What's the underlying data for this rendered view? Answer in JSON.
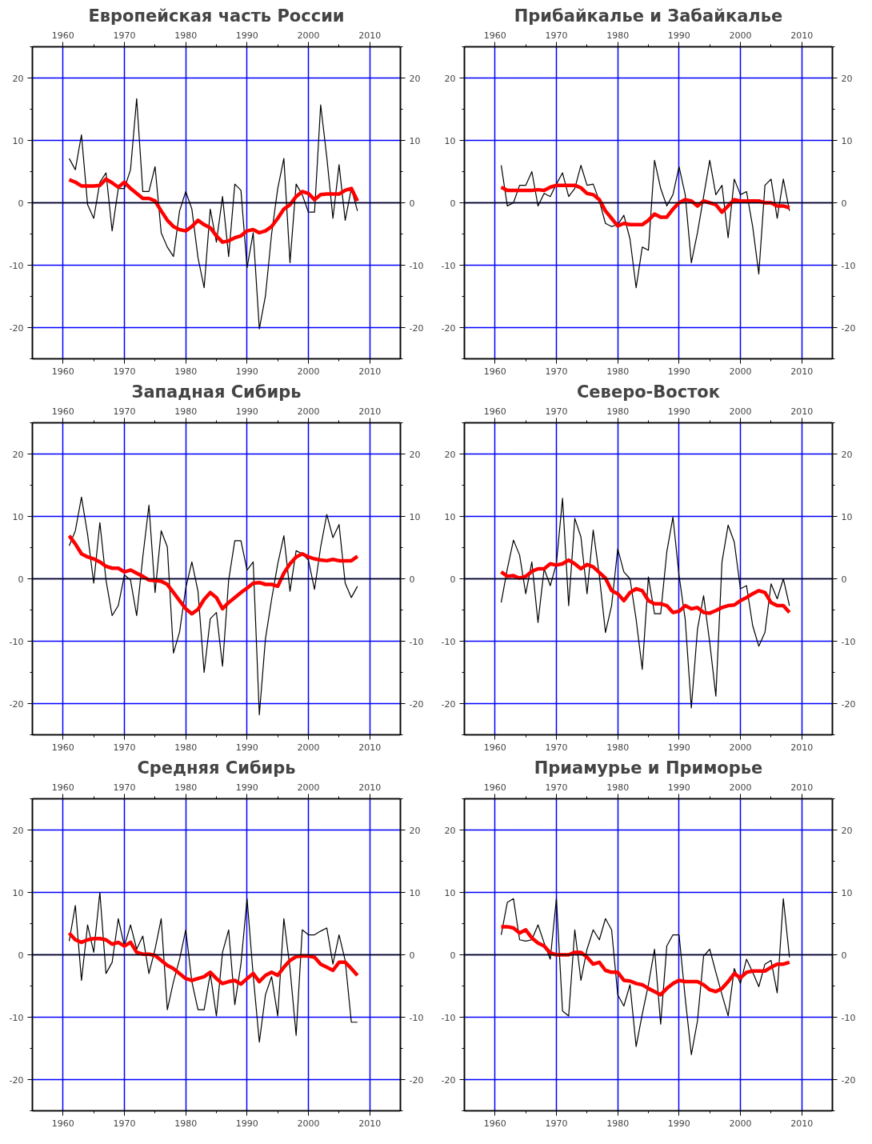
{
  "chart_data": [
    {
      "type": "line",
      "title": "Европейская часть России",
      "x": [
        1961,
        1962,
        1963,
        1964,
        1965,
        1966,
        1967,
        1968,
        1969,
        1970,
        1971,
        1972,
        1973,
        1974,
        1975,
        1976,
        1977,
        1978,
        1979,
        1980,
        1981,
        1982,
        1983,
        1984,
        1985,
        1986,
        1987,
        1988,
        1989,
        1990,
        1991,
        1992,
        1993,
        1994,
        1995,
        1996,
        1997,
        1998,
        1999,
        2000,
        2001,
        2002,
        2003,
        2004,
        2005,
        2006,
        2007,
        2008
      ],
      "series": [
        {
          "color": "#000000",
          "values": [
            7.1,
            5.3,
            10.9,
            -0.3,
            -2.5,
            3.3,
            4.8,
            -4.5,
            2.3,
            2.3,
            5.3,
            16.7,
            1.8,
            1.8,
            5.8,
            -4.8,
            -7.1,
            -8.6,
            -1.3,
            1.8,
            -1,
            -8.8,
            -13.6,
            -1,
            -6.3,
            1,
            -8.6,
            3,
            2,
            -10.4,
            -4.8,
            -20.2,
            -14.9,
            -5,
            2.3,
            7.1,
            -9.6,
            3,
            1.3,
            -1.5,
            -1.5,
            15.7,
            7.3,
            -2.5,
            6.1,
            -2.8,
            2.3,
            -1.3
          ]
        },
        {
          "color": "#ff0000",
          "values": [
            3.7,
            3.3,
            2.7,
            2.7,
            2.7,
            2.8,
            3.8,
            3.2,
            2.5,
            3.3,
            2.3,
            1.5,
            0.7,
            0.7,
            0.3,
            -1.3,
            -2.8,
            -3.8,
            -4.3,
            -4.5,
            -3.8,
            -2.8,
            -3.5,
            -4,
            -5.3,
            -6.3,
            -6.1,
            -5.6,
            -5.3,
            -4.5,
            -4.3,
            -4.8,
            -4.5,
            -3.8,
            -2.5,
            -1,
            -0.3,
            1,
            1.8,
            1.5,
            0.5,
            1.3,
            1.4,
            1.4,
            1.4,
            2,
            2.3,
            0.3
          ]
        }
      ],
      "xlim": [
        1955,
        2015
      ],
      "ylim": [
        -25,
        25
      ],
      "x2lim": [
        1955,
        2015
      ],
      "y2lim": [
        -25,
        25
      ],
      "xticks": [
        1960,
        {
          "value": 1965,
          "label": null
        },
        1970,
        {
          "value": 1975,
          "label": null
        },
        1980,
        {
          "value": 1985,
          "label": null
        },
        1990,
        {
          "value": 1995,
          "label": null
        },
        2000,
        {
          "value": 2005,
          "label": null
        },
        2010
      ],
      "x2ticks": [
        1960,
        {
          "value": 1965,
          "label": null
        },
        1970,
        {
          "value": 1975,
          "label": null
        },
        1980,
        {
          "value": 1985,
          "label": null
        },
        1990,
        {
          "value": 1995,
          "label": null
        },
        2000,
        {
          "value": 2005,
          "label": null
        },
        2010
      ],
      "yticks": [
        {
          "value": -25,
          "label": null
        },
        -20,
        {
          "value": -15,
          "label": null
        },
        -10,
        {
          "value": -5,
          "label": null
        },
        0,
        {
          "value": 5,
          "label": null
        },
        10,
        {
          "value": 15,
          "label": null
        },
        20,
        {
          "value": 25,
          "label": null
        }
      ],
      "y2ticks": [
        {
          "value": -25,
          "label": null
        },
        -20,
        {
          "value": -15,
          "label": null
        },
        -10,
        {
          "value": -5,
          "label": null
        },
        0,
        {
          "value": 5,
          "label": null
        },
        10,
        {
          "value": 15,
          "label": null
        },
        20,
        {
          "value": 25,
          "label": null
        }
      ],
      "grid": true,
      "ref_lines": [
        {
          "axis": "y",
          "value": 0,
          "color": "#000000"
        }
      ]
    },
    {
      "type": "line",
      "title": "Прибайкалье и Забайкалье",
      "x": [
        1961,
        1962,
        1963,
        1964,
        1965,
        1966,
        1967,
        1968,
        1969,
        1970,
        1971,
        1972,
        1973,
        1974,
        1975,
        1976,
        1977,
        1978,
        1979,
        1980,
        1981,
        1982,
        1983,
        1984,
        1985,
        1986,
        1987,
        1988,
        1989,
        1990,
        1991,
        1992,
        1993,
        1994,
        1995,
        1996,
        1997,
        1998,
        1999,
        2000,
        2001,
        2002,
        2003,
        2004,
        2005,
        2006,
        2007,
        2008
      ],
      "series": [
        {
          "color": "#000000",
          "values": [
            6,
            -0.5,
            0,
            2.8,
            2.8,
            5,
            -0.5,
            1.5,
            1,
            3,
            4.8,
            1,
            2.3,
            6,
            2.8,
            3,
            0.3,
            -3.3,
            -3.8,
            -3.5,
            -2,
            -5.8,
            -13.6,
            -7.1,
            -7.6,
            6.8,
            2.3,
            -0.5,
            1.3,
            5.8,
            1.3,
            -9.6,
            -4.8,
            1,
            6.8,
            1.3,
            2.8,
            -5.6,
            3.8,
            1.3,
            1.8,
            -3.8,
            -11.4,
            2.8,
            3.8,
            -2.5,
            3.8,
            -1.3
          ]
        },
        {
          "color": "#ff0000",
          "values": [
            2.5,
            2,
            2,
            2,
            2,
            2,
            2.1,
            2,
            2.5,
            2.8,
            2.8,
            2.8,
            2.8,
            2.4,
            1.5,
            1.3,
            0.5,
            -1.3,
            -2.5,
            -3.7,
            -3.3,
            -3.5,
            -3.5,
            -3.5,
            -2.8,
            -1.8,
            -2.3,
            -2.3,
            -1,
            0,
            0.5,
            0.3,
            -0.5,
            0.3,
            0,
            -0.3,
            -1.5,
            -0.5,
            0.5,
            0.3,
            0.3,
            0.3,
            0.3,
            0,
            0,
            -0.5,
            -0.5,
            -0.8
          ]
        }
      ],
      "xlim": [
        1955,
        2015
      ],
      "ylim": [
        -25,
        25
      ],
      "x2lim": [
        1955,
        2015
      ],
      "y2lim": [
        -25,
        25
      ],
      "xticks": [
        1960,
        {
          "value": 1965,
          "label": null
        },
        1970,
        {
          "value": 1975,
          "label": null
        },
        1980,
        {
          "value": 1985,
          "label": null
        },
        1990,
        {
          "value": 1995,
          "label": null
        },
        2000,
        {
          "value": 2005,
          "label": null
        },
        2010
      ],
      "x2ticks": [
        1960,
        {
          "value": 1965,
          "label": null
        },
        1970,
        {
          "value": 1975,
          "label": null
        },
        1980,
        {
          "value": 1985,
          "label": null
        },
        1990,
        {
          "value": 1995,
          "label": null
        },
        2000,
        {
          "value": 2005,
          "label": null
        },
        2010
      ],
      "yticks": [
        {
          "value": -25,
          "label": null
        },
        -20,
        {
          "value": -15,
          "label": null
        },
        -10,
        {
          "value": -5,
          "label": null
        },
        0,
        {
          "value": 5,
          "label": null
        },
        10,
        {
          "value": 15,
          "label": null
        },
        20,
        {
          "value": 25,
          "label": null
        }
      ],
      "y2ticks": [
        {
          "value": -25,
          "label": null
        },
        -20,
        {
          "value": -15,
          "label": null
        },
        -10,
        {
          "value": -5,
          "label": null
        },
        0,
        {
          "value": 5,
          "label": null
        },
        10,
        {
          "value": 15,
          "label": null
        },
        20,
        {
          "value": 25,
          "label": null
        }
      ],
      "grid": true,
      "ref_lines": [
        {
          "axis": "y",
          "value": 0,
          "color": "#000000"
        }
      ]
    },
    {
      "type": "line",
      "title": "Западная Сибирь",
      "x": [
        1961,
        1962,
        1963,
        1964,
        1965,
        1966,
        1967,
        1968,
        1969,
        1970,
        1971,
        1972,
        1973,
        1974,
        1975,
        1976,
        1977,
        1978,
        1979,
        1980,
        1981,
        1982,
        1983,
        1984,
        1985,
        1986,
        1987,
        1988,
        1989,
        1990,
        1991,
        1992,
        1993,
        1994,
        1995,
        1996,
        1997,
        1998,
        1999,
        2000,
        2001,
        2002,
        2003,
        2004,
        2005,
        2006,
        2007,
        2008
      ],
      "series": [
        {
          "color": "#000000",
          "values": [
            5.3,
            7.7,
            13.1,
            7.1,
            -0.7,
            9,
            -0.2,
            -5.9,
            -4.3,
            0.6,
            -0.2,
            -5.9,
            3.5,
            11.8,
            -2.2,
            7.7,
            5.1,
            -11.9,
            -8.5,
            -1.5,
            2.7,
            -2,
            -15,
            -6.4,
            -5.4,
            -14,
            -0.2,
            6.1,
            6.1,
            1.4,
            2.7,
            -21.8,
            -9.6,
            -3.3,
            2.4,
            6.9,
            -2,
            4.5,
            4,
            3,
            -1.7,
            5.1,
            10.3,
            6.6,
            8.7,
            -0.7,
            -3,
            -1.2
          ]
        },
        {
          "color": "#ff0000",
          "values": [
            6.9,
            5.6,
            4,
            3.5,
            3.2,
            2.7,
            2,
            1.7,
            1.7,
            1.1,
            1.4,
            0.9,
            0.4,
            -0.2,
            -0.3,
            -0.4,
            -0.9,
            -2.2,
            -3.5,
            -4.8,
            -5.6,
            -4.9,
            -3.3,
            -2.2,
            -3,
            -4.8,
            -3.8,
            -3,
            -2.2,
            -1.5,
            -0.7,
            -0.6,
            -0.9,
            -0.9,
            -1.2,
            0.9,
            2.4,
            3.5,
            4,
            3.5,
            3.2,
            3,
            2.9,
            3.1,
            2.9,
            2.9,
            2.9,
            3.6
          ]
        }
      ],
      "xlim": [
        1955,
        2015
      ],
      "ylim": [
        -25,
        25
      ],
      "x2lim": [
        1955,
        2015
      ],
      "y2lim": [
        -25,
        25
      ],
      "xticks": [
        1960,
        {
          "value": 1965,
          "label": null
        },
        1970,
        {
          "value": 1975,
          "label": null
        },
        1980,
        {
          "value": 1985,
          "label": null
        },
        1990,
        {
          "value": 1995,
          "label": null
        },
        2000,
        {
          "value": 2005,
          "label": null
        },
        2010
      ],
      "x2ticks": [
        1960,
        {
          "value": 1965,
          "label": null
        },
        1970,
        {
          "value": 1975,
          "label": null
        },
        1980,
        {
          "value": 1985,
          "label": null
        },
        1990,
        {
          "value": 1995,
          "label": null
        },
        2000,
        {
          "value": 2005,
          "label": null
        },
        2010
      ],
      "yticks": [
        {
          "value": -25,
          "label": null
        },
        -20,
        {
          "value": -15,
          "label": null
        },
        -10,
        {
          "value": -5,
          "label": null
        },
        0,
        {
          "value": 5,
          "label": null
        },
        10,
        {
          "value": 15,
          "label": null
        },
        20,
        {
          "value": 25,
          "label": null
        }
      ],
      "y2ticks": [
        {
          "value": -25,
          "label": null
        },
        -20,
        {
          "value": -15,
          "label": null
        },
        -10,
        {
          "value": -5,
          "label": null
        },
        0,
        {
          "value": 5,
          "label": null
        },
        10,
        {
          "value": 15,
          "label": null
        },
        20,
        {
          "value": 25,
          "label": null
        }
      ],
      "grid": true,
      "ref_lines": [
        {
          "axis": "y",
          "value": 0,
          "color": "#000000"
        }
      ]
    },
    {
      "type": "line",
      "title": "Северо-Восток",
      "x": [
        1961,
        1962,
        1963,
        1964,
        1965,
        1966,
        1967,
        1968,
        1969,
        1970,
        1971,
        1972,
        1973,
        1974,
        1975,
        1976,
        1977,
        1978,
        1979,
        1980,
        1981,
        1982,
        1983,
        1984,
        1985,
        1986,
        1987,
        1988,
        1989,
        1990,
        1991,
        1992,
        1993,
        1994,
        1995,
        1996,
        1997,
        1998,
        1999,
        2000,
        2001,
        2002,
        2003,
        2004,
        2005,
        2006,
        2007,
        2008
      ],
      "series": [
        {
          "color": "#000000",
          "values": [
            -3.8,
            1.6,
            6.2,
            3.8,
            -2.4,
            2.7,
            -7,
            1.6,
            -1.1,
            2.4,
            12.9,
            -4.3,
            9.7,
            6.7,
            -2.4,
            7.8,
            0.5,
            -8.6,
            -4.3,
            4.8,
            1.1,
            0,
            -6.5,
            -14.5,
            0.3,
            -5.6,
            -5.6,
            4.3,
            9.9,
            0.5,
            -6.5,
            -20.7,
            -8.1,
            -2.7,
            -10.2,
            -18.8,
            2.7,
            8.6,
            5.9,
            -1.6,
            -1.1,
            -7.5,
            -10.8,
            -8.6,
            -0.8,
            -3.2,
            0,
            -4.3
          ]
        },
        {
          "color": "#ff0000",
          "values": [
            1.1,
            0.4,
            0.5,
            0.1,
            0.4,
            1.2,
            1.6,
            1.6,
            2.4,
            2.2,
            2.4,
            3,
            2.4,
            1.6,
            2.3,
            1.9,
            1,
            0.1,
            -1.9,
            -2.4,
            -3.5,
            -2.2,
            -1.6,
            -1.9,
            -3.5,
            -4,
            -4,
            -4.3,
            -5.4,
            -5.2,
            -4.3,
            -4.8,
            -4.6,
            -5.4,
            -5.5,
            -5.1,
            -4.6,
            -4.3,
            -4.2,
            -3.5,
            -3,
            -2.4,
            -1.9,
            -2.2,
            -3.8,
            -4.3,
            -4.3,
            -5.4
          ]
        }
      ],
      "xlim": [
        1955,
        2015
      ],
      "ylim": [
        -25,
        25
      ],
      "x2lim": [
        1955,
        2015
      ],
      "y2lim": [
        -25,
        25
      ],
      "xticks": [
        1960,
        {
          "value": 1965,
          "label": null
        },
        1970,
        {
          "value": 1975,
          "label": null
        },
        1980,
        {
          "value": 1985,
          "label": null
        },
        1990,
        {
          "value": 1995,
          "label": null
        },
        2000,
        {
          "value": 2005,
          "label": null
        },
        2010
      ],
      "x2ticks": [
        1960,
        {
          "value": 1965,
          "label": null
        },
        1970,
        {
          "value": 1975,
          "label": null
        },
        1980,
        {
          "value": 1985,
          "label": null
        },
        1990,
        {
          "value": 1995,
          "label": null
        },
        2000,
        {
          "value": 2005,
          "label": null
        },
        2010
      ],
      "yticks": [
        {
          "value": -25,
          "label": null
        },
        -20,
        {
          "value": -15,
          "label": null
        },
        -10,
        {
          "value": -5,
          "label": null
        },
        0,
        {
          "value": 5,
          "label": null
        },
        10,
        {
          "value": 15,
          "label": null
        },
        20,
        {
          "value": 25,
          "label": null
        }
      ],
      "y2ticks": [
        {
          "value": -25,
          "label": null
        },
        -20,
        {
          "value": -15,
          "label": null
        },
        -10,
        {
          "value": -5,
          "label": null
        },
        0,
        {
          "value": 5,
          "label": null
        },
        10,
        {
          "value": 15,
          "label": null
        },
        20,
        {
          "value": 25,
          "label": null
        }
      ],
      "grid": true,
      "ref_lines": [
        {
          "axis": "y",
          "value": 0,
          "color": "#000000"
        }
      ]
    },
    {
      "type": "line",
      "title": "Средняя Сибирь",
      "x": [
        1961,
        1962,
        1963,
        1964,
        1965,
        1966,
        1967,
        1968,
        1969,
        1970,
        1971,
        1972,
        1973,
        1974,
        1975,
        1976,
        1977,
        1978,
        1979,
        1980,
        1981,
        1982,
        1983,
        1984,
        1985,
        1986,
        1987,
        1988,
        1989,
        1990,
        1991,
        1992,
        1993,
        1994,
        1995,
        1996,
        1997,
        1998,
        1999,
        2000,
        2001,
        2002,
        2003,
        2004,
        2005,
        2006,
        2007,
        2008
      ],
      "series": [
        {
          "color": "#000000",
          "values": [
            2.2,
            7.9,
            -4.1,
            4.8,
            0.4,
            10,
            -3,
            -1.2,
            5.8,
            1.4,
            4.8,
            0.9,
            3,
            -3,
            0.9,
            5.8,
            -8.8,
            -4.3,
            -0.7,
            4,
            -4.3,
            -8.8,
            -8.8,
            -3,
            -9.8,
            0.4,
            4,
            -8,
            -1.5,
            9,
            -3.3,
            -14,
            -6.4,
            -3.5,
            -9.8,
            5.8,
            -2.2,
            -12.9,
            4,
            3.2,
            3.2,
            3.8,
            4.3,
            -1.5,
            3.2,
            -0.9,
            -10.8,
            -10.8
          ]
        },
        {
          "color": "#ff0000",
          "values": [
            3.5,
            2.4,
            2,
            2.4,
            2.6,
            2.6,
            2.4,
            1.7,
            2,
            1.4,
            2,
            0.4,
            0.1,
            0.1,
            -0.1,
            -0.9,
            -1.7,
            -2.2,
            -3,
            -3.8,
            -4.1,
            -3.8,
            -3.5,
            -2.8,
            -3.8,
            -4.6,
            -4.3,
            -4.1,
            -4.7,
            -3.8,
            -3,
            -4.3,
            -3.3,
            -2.8,
            -3.3,
            -2,
            -0.9,
            -0.3,
            -0.2,
            -0.2,
            -0.4,
            -1.5,
            -2,
            -2.5,
            -1.2,
            -1.2,
            -2.2,
            -3.3
          ]
        }
      ],
      "xlim": [
        1955,
        2015
      ],
      "ylim": [
        -25,
        25
      ],
      "x2lim": [
        1955,
        2015
      ],
      "y2lim": [
        -25,
        25
      ],
      "xticks": [
        1960,
        {
          "value": 1965,
          "label": null
        },
        1970,
        {
          "value": 1975,
          "label": null
        },
        1980,
        {
          "value": 1985,
          "label": null
        },
        1990,
        {
          "value": 1995,
          "label": null
        },
        2000,
        {
          "value": 2005,
          "label": null
        },
        2010
      ],
      "x2ticks": [
        1960,
        {
          "value": 1965,
          "label": null
        },
        1970,
        {
          "value": 1975,
          "label": null
        },
        1980,
        {
          "value": 1985,
          "label": null
        },
        1990,
        {
          "value": 1995,
          "label": null
        },
        2000,
        {
          "value": 2005,
          "label": null
        },
        2010
      ],
      "yticks": [
        {
          "value": -25,
          "label": null
        },
        -20,
        {
          "value": -15,
          "label": null
        },
        -10,
        {
          "value": -5,
          "label": null
        },
        0,
        {
          "value": 5,
          "label": null
        },
        10,
        {
          "value": 15,
          "label": null
        },
        20,
        {
          "value": 25,
          "label": null
        }
      ],
      "y2ticks": [
        {
          "value": -25,
          "label": null
        },
        -20,
        {
          "value": -15,
          "label": null
        },
        -10,
        {
          "value": -5,
          "label": null
        },
        0,
        {
          "value": 5,
          "label": null
        },
        10,
        {
          "value": 15,
          "label": null
        },
        20,
        {
          "value": 25,
          "label": null
        }
      ],
      "grid": true,
      "ref_lines": [
        {
          "axis": "y",
          "value": 0,
          "color": "#000000"
        }
      ]
    },
    {
      "type": "line",
      "title": "Приамурье и Приморье",
      "x": [
        1961,
        1962,
        1963,
        1964,
        1965,
        1966,
        1967,
        1968,
        1969,
        1970,
        1971,
        1972,
        1973,
        1974,
        1975,
        1976,
        1977,
        1978,
        1979,
        1980,
        1981,
        1982,
        1983,
        1984,
        1985,
        1986,
        1987,
        1988,
        1989,
        1990,
        1991,
        1992,
        1993,
        1994,
        1995,
        1996,
        1997,
        1998,
        1999,
        2000,
        2001,
        2002,
        2003,
        2004,
        2005,
        2006,
        2007,
        2008
      ],
      "series": [
        {
          "color": "#000000",
          "values": [
            3.2,
            8.4,
            9,
            2.4,
            2.2,
            2.4,
            4.8,
            1.9,
            -0.7,
            9,
            -9,
            -9.8,
            4,
            -4.1,
            0.9,
            4,
            2.4,
            5.8,
            4,
            -6.4,
            -8.2,
            -4.8,
            -14.7,
            -9.5,
            -4.8,
            0.9,
            -11.1,
            1.4,
            3.2,
            3.2,
            -6.9,
            -16,
            -10.6,
            -0.2,
            0.9,
            -2.8,
            -6.4,
            -9.8,
            -2.2,
            -4.6,
            -0.7,
            -2.8,
            -5.1,
            -1.5,
            -0.9,
            -6.1,
            9,
            -0.4
          ]
        },
        {
          "color": "#ff0000",
          "values": [
            4.5,
            4.5,
            4.3,
            3.5,
            4,
            2.7,
            1.9,
            1.4,
            0.3,
            0,
            0,
            0,
            0.4,
            0.4,
            -0.4,
            -1.5,
            -1.2,
            -2.5,
            -2.8,
            -2.8,
            -4.1,
            -4.2,
            -4.6,
            -4.8,
            -5.4,
            -5.9,
            -6.4,
            -5.4,
            -4.6,
            -4.1,
            -4.3,
            -4.3,
            -4.3,
            -4.8,
            -5.6,
            -5.9,
            -5.4,
            -4.3,
            -3,
            -3.7,
            -2.8,
            -2.6,
            -2.6,
            -2.6,
            -2,
            -1.5,
            -1.5,
            -1.2
          ]
        }
      ],
      "xlim": [
        1955,
        2015
      ],
      "ylim": [
        -25,
        25
      ],
      "x2lim": [
        1955,
        2015
      ],
      "y2lim": [
        -25,
        25
      ],
      "xticks": [
        1960,
        {
          "value": 1965,
          "label": null
        },
        1970,
        {
          "value": 1975,
          "label": null
        },
        1980,
        {
          "value": 1985,
          "label": null
        },
        1990,
        {
          "value": 1995,
          "label": null
        },
        2000,
        {
          "value": 2005,
          "label": null
        },
        2010
      ],
      "x2ticks": [
        1960,
        {
          "value": 1965,
          "label": null
        },
        1970,
        {
          "value": 1975,
          "label": null
        },
        1980,
        {
          "value": 1985,
          "label": null
        },
        1990,
        {
          "value": 1995,
          "label": null
        },
        2000,
        {
          "value": 2005,
          "label": null
        },
        2010
      ],
      "yticks": [
        {
          "value": -25,
          "label": null
        },
        -20,
        {
          "value": -15,
          "label": null
        },
        -10,
        {
          "value": -5,
          "label": null
        },
        0,
        {
          "value": 5,
          "label": null
        },
        10,
        {
          "value": 15,
          "label": null
        },
        20,
        {
          "value": 25,
          "label": null
        }
      ],
      "y2ticks": [
        {
          "value": -25,
          "label": null
        },
        -20,
        {
          "value": -15,
          "label": null
        },
        -10,
        {
          "value": -5,
          "label": null
        },
        0,
        {
          "value": 5,
          "label": null
        },
        10,
        {
          "value": 15,
          "label": null
        },
        20,
        {
          "value": 25,
          "label": null
        }
      ],
      "grid": true,
      "ref_lines": [
        {
          "axis": "y",
          "value": 0,
          "color": "#000000"
        }
      ]
    }
  ]
}
